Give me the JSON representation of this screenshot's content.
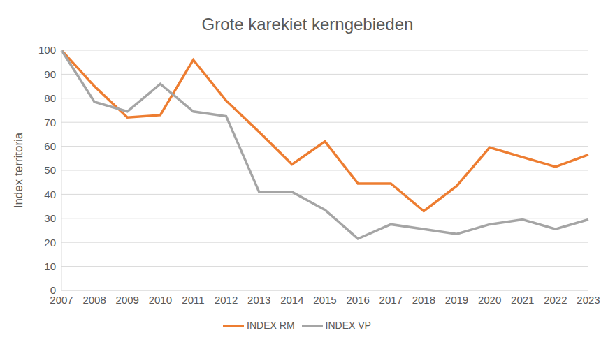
{
  "chart_data": {
    "type": "line",
    "title": "Grote karekiet kerngebieden",
    "y_label": "Index territoria",
    "categories": [
      "2007",
      "2008",
      "2009",
      "2010",
      "2011",
      "2012",
      "2013",
      "2014",
      "2015",
      "2016",
      "2017",
      "2018",
      "2019",
      "2020",
      "2021",
      "2022",
      "2023"
    ],
    "series": [
      {
        "name": "INDEX RM",
        "color": "#ED7D31",
        "values": [
          100,
          85,
          72,
          73,
          96,
          79,
          66,
          52.5,
          62,
          44.5,
          44.5,
          33,
          43.5,
          59.5,
          55.5,
          51.5,
          56.5
        ]
      },
      {
        "name": "INDEX VP",
        "color": "#A5A5A5",
        "values": [
          100,
          78.5,
          74.5,
          86,
          74.5,
          72.5,
          41,
          41,
          33.5,
          21.5,
          27.5,
          25.5,
          23.5,
          27.5,
          29.5,
          25.5,
          29.5
        ]
      }
    ],
    "ylim": [
      0,
      100
    ],
    "yticks": [
      0,
      10,
      20,
      30,
      40,
      50,
      60,
      70,
      80,
      90,
      100
    ],
    "grid": true,
    "legend": "bottom"
  }
}
